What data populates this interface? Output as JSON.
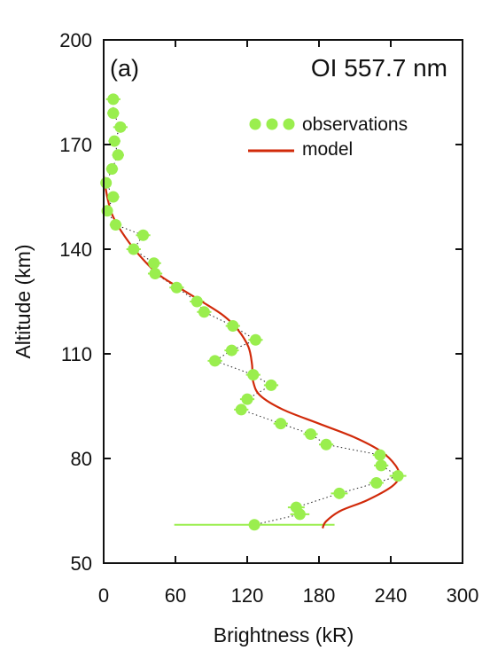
{
  "chart_data": {
    "type": "scatter",
    "panel_label": "(a)",
    "title": "OI 557.7 nm",
    "xlabel": "Brightness (kR)",
    "ylabel": "Altitude (km)",
    "xlim": [
      0,
      300
    ],
    "ylim": [
      50,
      200
    ],
    "x_ticks": [
      "0",
      "60",
      "120",
      "180",
      "240",
      "300"
    ],
    "y_ticks": [
      "50",
      "80",
      "110",
      "140",
      "170",
      "200"
    ],
    "x_tick_values": [
      0,
      60,
      120,
      180,
      240,
      300
    ],
    "y_tick_values": [
      50,
      80,
      110,
      140,
      170,
      200
    ],
    "grid": false,
    "legend_position": "top-right",
    "colors": {
      "observations": "#9aee4e",
      "model": "#d12a0a",
      "axis": "#111111"
    },
    "series": [
      {
        "name": "observations",
        "style": "points-with-dotted-line",
        "points": [
          {
            "x": 8,
            "y": 183,
            "xerr": 6
          },
          {
            "x": 8,
            "y": 179,
            "xerr": 5
          },
          {
            "x": 14,
            "y": 175,
            "xerr": 6
          },
          {
            "x": 9,
            "y": 171,
            "xerr": 5
          },
          {
            "x": 12,
            "y": 167,
            "xerr": 5
          },
          {
            "x": 7,
            "y": 163,
            "xerr": 5
          },
          {
            "x": 2,
            "y": 159,
            "xerr": 4
          },
          {
            "x": 8,
            "y": 155,
            "xerr": 5
          },
          {
            "x": 3,
            "y": 151,
            "xerr": 4
          },
          {
            "x": 10,
            "y": 147,
            "xerr": 5
          },
          {
            "x": 33,
            "y": 144,
            "xerr": 6
          },
          {
            "x": 25,
            "y": 140,
            "xerr": 6
          },
          {
            "x": 42,
            "y": 136,
            "xerr": 6
          },
          {
            "x": 43,
            "y": 133,
            "xerr": 6
          },
          {
            "x": 61,
            "y": 129,
            "xerr": 6
          },
          {
            "x": 78,
            "y": 125,
            "xerr": 6
          },
          {
            "x": 84,
            "y": 122,
            "xerr": 6
          },
          {
            "x": 108,
            "y": 118,
            "xerr": 6
          },
          {
            "x": 127,
            "y": 114,
            "xerr": 6
          },
          {
            "x": 107,
            "y": 111,
            "xerr": 6
          },
          {
            "x": 93,
            "y": 108,
            "xerr": 6
          },
          {
            "x": 125,
            "y": 104,
            "xerr": 6
          },
          {
            "x": 140,
            "y": 101,
            "xerr": 6
          },
          {
            "x": 120,
            "y": 97,
            "xerr": 6
          },
          {
            "x": 115,
            "y": 94,
            "xerr": 6
          },
          {
            "x": 148,
            "y": 90,
            "xerr": 6
          },
          {
            "x": 173,
            "y": 87,
            "xerr": 6
          },
          {
            "x": 186,
            "y": 84,
            "xerr": 6
          },
          {
            "x": 231,
            "y": 81,
            "xerr": 6
          },
          {
            "x": 232,
            "y": 78,
            "xerr": 6
          },
          {
            "x": 246,
            "y": 75,
            "xerr": 7
          },
          {
            "x": 228,
            "y": 73,
            "xerr": 6
          },
          {
            "x": 197,
            "y": 70,
            "xerr": 7
          },
          {
            "x": 161,
            "y": 66,
            "xerr": 7
          },
          {
            "x": 164,
            "y": 64,
            "xerr": 8
          },
          {
            "x": 126,
            "y": 61,
            "xerr": 67
          }
        ]
      },
      {
        "name": "model",
        "style": "line",
        "points": [
          {
            "x": 0,
            "y": 161
          },
          {
            "x": 3,
            "y": 155
          },
          {
            "x": 7,
            "y": 150
          },
          {
            "x": 15,
            "y": 145
          },
          {
            "x": 28,
            "y": 139
          },
          {
            "x": 45,
            "y": 133
          },
          {
            "x": 63,
            "y": 129
          },
          {
            "x": 82,
            "y": 125
          },
          {
            "x": 100,
            "y": 121
          },
          {
            "x": 112,
            "y": 117
          },
          {
            "x": 121,
            "y": 112
          },
          {
            "x": 124,
            "y": 107
          },
          {
            "x": 125,
            "y": 102
          },
          {
            "x": 131,
            "y": 98
          },
          {
            "x": 150,
            "y": 94
          },
          {
            "x": 180,
            "y": 90
          },
          {
            "x": 210,
            "y": 86
          },
          {
            "x": 232,
            "y": 82
          },
          {
            "x": 244,
            "y": 78
          },
          {
            "x": 247,
            "y": 75
          },
          {
            "x": 241,
            "y": 72
          },
          {
            "x": 220,
            "y": 68
          },
          {
            "x": 198,
            "y": 65
          },
          {
            "x": 186,
            "y": 62
          },
          {
            "x": 183,
            "y": 60
          }
        ]
      }
    ]
  }
}
